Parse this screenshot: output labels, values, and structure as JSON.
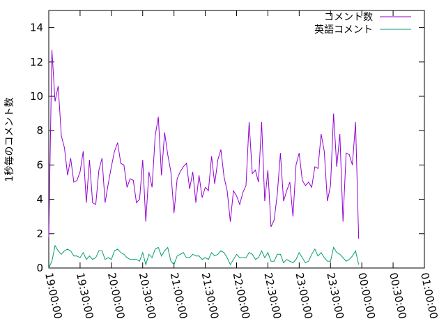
{
  "chart_data": {
    "type": "line",
    "ylabel": "1秒毎のコメント数",
    "xlabel": "",
    "ylim": [
      0,
      15
    ],
    "xlim": [
      "19:00:00",
      "01:00:00"
    ],
    "yticks": [
      0,
      2,
      4,
      6,
      8,
      10,
      12,
      14
    ],
    "xticks": [
      "19:00:00",
      "19:30:00",
      "20:00:00",
      "20:30:00",
      "21:00:00",
      "21:30:00",
      "22:00:00",
      "22:30:00",
      "23:00:00",
      "23:30:00",
      "00:00:00",
      "00:30:00",
      "01:00:00"
    ],
    "x_interval_minutes": 3,
    "legend_position": "top-right",
    "grid": false,
    "series": [
      {
        "name": "コメント数",
        "color": "#9400d3",
        "values": [
          1.8,
          12.7,
          9.7,
          10.6,
          7.7,
          7.0,
          5.4,
          6.4,
          5.0,
          5.1,
          5.6,
          6.8,
          3.8,
          6.3,
          3.8,
          3.7,
          5.7,
          6.4,
          3.8,
          4.9,
          5.9,
          6.8,
          7.3,
          6.1,
          6.0,
          4.7,
          5.2,
          5.1,
          3.8,
          4.0,
          6.3,
          2.7,
          5.6,
          4.7,
          7.7,
          8.8,
          5.4,
          7.9,
          6.6,
          5.6,
          3.2,
          5.2,
          5.6,
          5.9,
          6.1,
          4.6,
          5.6,
          3.8,
          5.4,
          4.1,
          4.7,
          4.5,
          6.5,
          4.9,
          6.3,
          6.9,
          5.3,
          4.5,
          2.7,
          4.5,
          4.2,
          3.7,
          4.4,
          4.8,
          8.5,
          5.5,
          5.7,
          5.0,
          8.5,
          3.9,
          5.7,
          2.4,
          2.8,
          4.3,
          6.7,
          3.9,
          4.5,
          5.0,
          3.0,
          6.0,
          6.7,
          5.1,
          4.8,
          5.0,
          4.7,
          5.9,
          5.8,
          7.8,
          6.8,
          3.9,
          4.8,
          9.0,
          5.9,
          7.8,
          2.7,
          6.7,
          6.6,
          6.0,
          8.5,
          1.7
        ]
      },
      {
        "name": "英語コメント",
        "color": "#009e73",
        "values": [
          0.0,
          0.4,
          1.3,
          1.0,
          0.8,
          1.0,
          1.1,
          1.0,
          0.7,
          0.7,
          0.6,
          0.9,
          0.5,
          0.7,
          0.5,
          0.6,
          1.0,
          1.0,
          0.5,
          0.6,
          0.5,
          1.0,
          1.1,
          0.9,
          0.8,
          0.6,
          0.5,
          0.5,
          0.5,
          0.4,
          0.9,
          0.2,
          0.8,
          0.6,
          1.1,
          1.2,
          0.7,
          1.0,
          1.2,
          0.4,
          0.2,
          0.7,
          0.8,
          0.9,
          0.6,
          0.6,
          0.8,
          0.7,
          0.7,
          0.5,
          0.6,
          0.5,
          0.9,
          0.7,
          0.8,
          1.0,
          0.9,
          0.6,
          0.2,
          0.5,
          0.8,
          0.6,
          0.6,
          0.6,
          0.9,
          0.8,
          0.5,
          0.6,
          1.0,
          0.6,
          0.9,
          0.4,
          0.4,
          0.8,
          0.8,
          0.3,
          0.5,
          0.4,
          0.3,
          0.5,
          0.9,
          0.6,
          0.3,
          0.4,
          0.8,
          1.1,
          0.7,
          0.9,
          0.6,
          0.4,
          0.4,
          1.2,
          0.9,
          0.8,
          0.6,
          0.4,
          0.5,
          0.7,
          1.0,
          0.2
        ]
      }
    ]
  }
}
